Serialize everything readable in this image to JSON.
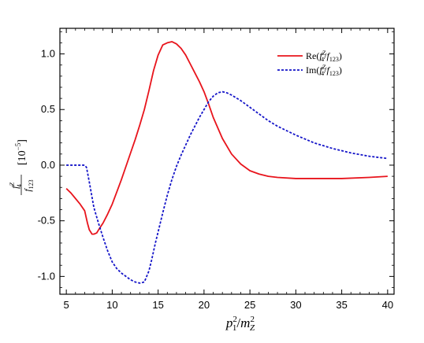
{
  "chart_data": {
    "type": "line",
    "xlabel": "p_1^2/m_Z^2",
    "ylabel": "f_4^Z / f_123 [10^-5]",
    "xlim": [
      4.3,
      40.7
    ],
    "ylim": [
      -1.16,
      1.23
    ],
    "xticks": [
      5,
      10,
      15,
      20,
      25,
      30,
      35,
      40
    ],
    "yticks": [
      -1.0,
      -0.5,
      0.0,
      0.5,
      1.0
    ],
    "xtick_labels": [
      "5",
      "10",
      "15",
      "20",
      "25",
      "30",
      "35",
      "40"
    ],
    "ytick_labels": [
      "-1.0",
      "-0.5",
      "0.0",
      "0.5",
      "1.0"
    ],
    "grid": false,
    "legend_position": "top-right",
    "series": [
      {
        "name": "Re(f_4^Z/f_123)",
        "color": "#e8141c",
        "style": "solid",
        "x": [
          5,
          5.5,
          6,
          6.5,
          7,
          7.3,
          7.5,
          7.8,
          8,
          8.3,
          8.6,
          9,
          9.5,
          10,
          10.5,
          11,
          11.5,
          12,
          12.5,
          13,
          13.5,
          14,
          14.5,
          15,
          15.5,
          16,
          16.5,
          17,
          17.5,
          18,
          18.5,
          19,
          19.5,
          20,
          20.5,
          21,
          22,
          23,
          24,
          25,
          26,
          27,
          28,
          30,
          32,
          35,
          38,
          40
        ],
        "y": [
          -0.21,
          -0.25,
          -0.3,
          -0.35,
          -0.41,
          -0.52,
          -0.58,
          -0.62,
          -0.62,
          -0.61,
          -0.57,
          -0.52,
          -0.44,
          -0.35,
          -0.24,
          -0.13,
          -0.01,
          0.11,
          0.23,
          0.36,
          0.5,
          0.67,
          0.85,
          0.99,
          1.08,
          1.1,
          1.11,
          1.09,
          1.05,
          0.99,
          0.91,
          0.83,
          0.75,
          0.66,
          0.55,
          0.43,
          0.24,
          0.1,
          0.01,
          -0.05,
          -0.08,
          -0.1,
          -0.11,
          -0.12,
          -0.12,
          -0.12,
          -0.11,
          -0.1
        ]
      },
      {
        "name": "Im(f_4^Z/f_123)",
        "color": "#1414c8",
        "style": "dashed",
        "x": [
          5,
          5.5,
          6,
          6.5,
          7,
          7.2,
          7.5,
          8,
          8.5,
          9,
          9.5,
          10,
          10.5,
          11,
          11.5,
          12,
          12.5,
          13,
          13.5,
          14,
          14.3,
          14.7,
          15,
          15.5,
          16,
          16.5,
          17,
          17.5,
          18,
          18.5,
          19,
          19.5,
          20,
          20.5,
          21,
          21.5,
          22,
          22.5,
          23,
          24,
          25,
          26,
          27,
          28,
          30,
          32,
          34,
          36,
          38,
          40
        ],
        "y": [
          0.0,
          0.0,
          0.0,
          0.0,
          0.0,
          -0.02,
          -0.15,
          -0.38,
          -0.52,
          -0.65,
          -0.77,
          -0.87,
          -0.93,
          -0.97,
          -1.0,
          -1.03,
          -1.05,
          -1.06,
          -1.05,
          -0.95,
          -0.85,
          -0.7,
          -0.6,
          -0.43,
          -0.27,
          -0.13,
          -0.01,
          0.09,
          0.18,
          0.27,
          0.35,
          0.43,
          0.5,
          0.57,
          0.62,
          0.65,
          0.66,
          0.65,
          0.63,
          0.58,
          0.52,
          0.46,
          0.4,
          0.35,
          0.27,
          0.2,
          0.15,
          0.11,
          0.08,
          0.06
        ]
      }
    ]
  }
}
